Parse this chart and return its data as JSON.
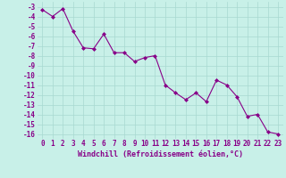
{
  "x": [
    0,
    1,
    2,
    3,
    4,
    5,
    6,
    7,
    8,
    9,
    10,
    11,
    12,
    13,
    14,
    15,
    16,
    17,
    18,
    19,
    20,
    21,
    22,
    23
  ],
  "y": [
    -3.3,
    -4.0,
    -3.2,
    -5.5,
    -7.2,
    -7.3,
    -5.8,
    -7.7,
    -7.7,
    -8.6,
    -8.2,
    -8.0,
    -11.0,
    -11.8,
    -12.5,
    -11.8,
    -12.7,
    -10.5,
    -11.0,
    -12.2,
    -14.2,
    -14.0,
    -15.8,
    -16.0
  ],
  "line_color": "#880088",
  "marker": "D",
  "markersize": 2,
  "linewidth": 0.8,
  "xlabel": "Windchill (Refroidissement éolien,°C)",
  "xlim_min": -0.5,
  "xlim_max": 23.5,
  "ylim_min": -16.5,
  "ylim_max": -2.5,
  "yticks": [
    -3,
    -4,
    -5,
    -6,
    -7,
    -8,
    -9,
    -10,
    -11,
    -12,
    -13,
    -14,
    -15,
    -16
  ],
  "xticks": [
    0,
    1,
    2,
    3,
    4,
    5,
    6,
    7,
    8,
    9,
    10,
    11,
    12,
    13,
    14,
    15,
    16,
    17,
    18,
    19,
    20,
    21,
    22,
    23
  ],
  "bg_color": "#c8f0e8",
  "grid_color": "#a8d8d0",
  "tick_color": "#880088",
  "label_color": "#880088",
  "tick_fontsize": 5.5,
  "xlabel_fontsize": 6.0
}
